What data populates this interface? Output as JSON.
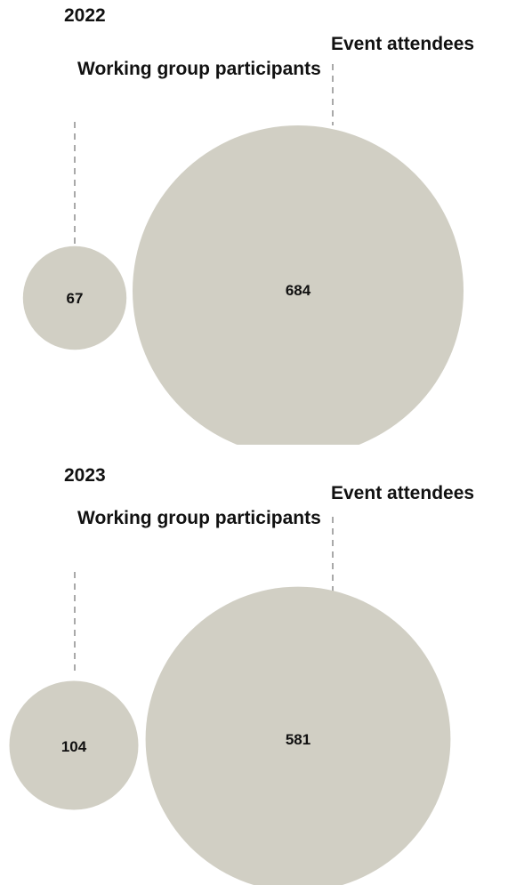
{
  "chart_data": [
    {
      "type": "bubble",
      "title": "2022",
      "series": [
        {
          "name": "Working group participants",
          "value": 67
        },
        {
          "name": "Event attendees",
          "value": 684
        }
      ]
    },
    {
      "type": "bubble",
      "title": "2023",
      "series": [
        {
          "name": "Working group participants",
          "value": 104
        },
        {
          "name": "Event attendees",
          "value": 581
        }
      ]
    }
  ],
  "colors": {
    "bubble": "#d1cfc4",
    "leader": "#a9a9a9"
  }
}
